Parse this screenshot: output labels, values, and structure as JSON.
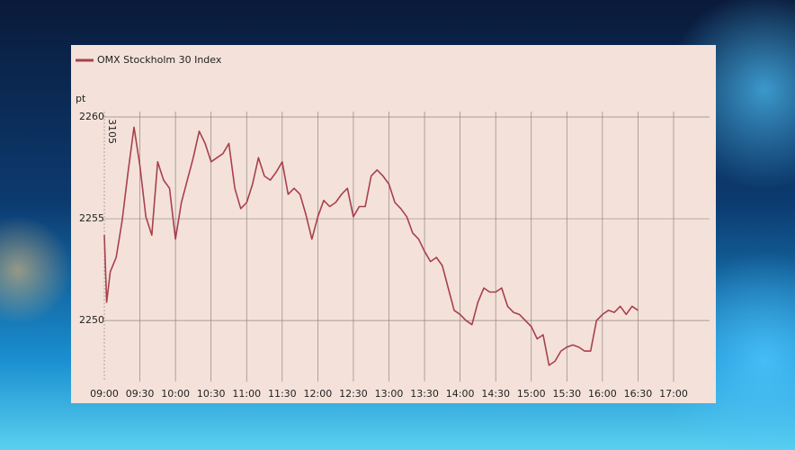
{
  "chart_data": {
    "type": "line",
    "y_label": "pt",
    "annotation": "3105",
    "x": [
      "09:00",
      "09:02",
      "09:05",
      "09:10",
      "09:15",
      "09:20",
      "09:25",
      "09:30",
      "09:35",
      "09:40",
      "09:45",
      "09:50",
      "09:55",
      "10:00",
      "10:05",
      "10:10",
      "10:15",
      "10:20",
      "10:25",
      "10:30",
      "10:35",
      "10:40",
      "10:45",
      "10:50",
      "10:55",
      "11:00",
      "11:05",
      "11:10",
      "11:15",
      "11:20",
      "11:25",
      "11:30",
      "11:35",
      "11:40",
      "11:45",
      "11:50",
      "11:55",
      "12:00",
      "12:05",
      "12:10",
      "12:15",
      "12:20",
      "12:25",
      "12:30",
      "12:35",
      "12:40",
      "12:45",
      "12:50",
      "12:55",
      "13:00",
      "13:05",
      "13:10",
      "13:15",
      "13:20",
      "13:25",
      "13:30",
      "13:35",
      "13:40",
      "13:45",
      "13:50",
      "13:55",
      "14:00",
      "14:05",
      "14:10",
      "14:15",
      "14:20",
      "14:25",
      "14:30",
      "14:35",
      "14:40",
      "14:45",
      "14:50",
      "14:55",
      "15:00",
      "15:05",
      "15:10",
      "15:15",
      "15:20",
      "15:25",
      "15:30",
      "15:35",
      "15:40",
      "15:45",
      "15:50",
      "15:55",
      "16:00",
      "16:05",
      "16:10",
      "16:15",
      "16:20",
      "16:25",
      "16:30"
    ],
    "series": [
      {
        "name": "OMX Stockholm 30 Index",
        "color": "#a8404c",
        "values": [
          2254.2,
          2250.9,
          2252.4,
          2253.1,
          2254.9,
          2257.3,
          2259.5,
          2257.6,
          2255.1,
          2254.2,
          2257.8,
          2256.9,
          2256.5,
          2254.0,
          2255.8,
          2256.9,
          2258.0,
          2259.3,
          2258.7,
          2257.8,
          2258.0,
          2258.2,
          2258.7,
          2256.5,
          2255.5,
          2255.8,
          2256.7,
          2258.0,
          2257.1,
          2256.9,
          2257.3,
          2257.8,
          2256.2,
          2256.5,
          2256.2,
          2255.2,
          2254.0,
          2255.1,
          2255.9,
          2255.6,
          2255.8,
          2256.2,
          2256.5,
          2255.1,
          2255.6,
          2255.6,
          2257.1,
          2257.4,
          2257.1,
          2256.7,
          2255.8,
          2255.5,
          2255.1,
          2254.3,
          2254.0,
          2253.4,
          2252.9,
          2253.1,
          2252.7,
          2251.6,
          2250.5,
          2250.3,
          2250.0,
          2249.8,
          2250.9,
          2251.6,
          2251.4,
          2251.4,
          2251.6,
          2250.7,
          2250.4,
          2250.3,
          2250.0,
          2249.7,
          2249.1,
          2249.3,
          2247.8,
          2248.0,
          2248.5,
          2248.7,
          2248.8,
          2248.7,
          2248.5,
          2248.5,
          2250.0,
          2250.3,
          2250.5,
          2250.4,
          2250.7,
          2250.3,
          2250.7,
          2250.5
        ]
      }
    ],
    "xlim": [
      "09:00",
      "17:00"
    ],
    "xticks": [
      "09:00",
      "09:30",
      "10:00",
      "10:30",
      "11:00",
      "11:30",
      "12:00",
      "12:30",
      "13:00",
      "13:30",
      "14:00",
      "14:30",
      "15:00",
      "15:30",
      "16:00",
      "16:30",
      "17:00"
    ],
    "ylim": [
      2247,
      2260
    ],
    "yticks": [
      2250,
      2255,
      2260
    ],
    "grid": true,
    "legend": "top-left"
  }
}
